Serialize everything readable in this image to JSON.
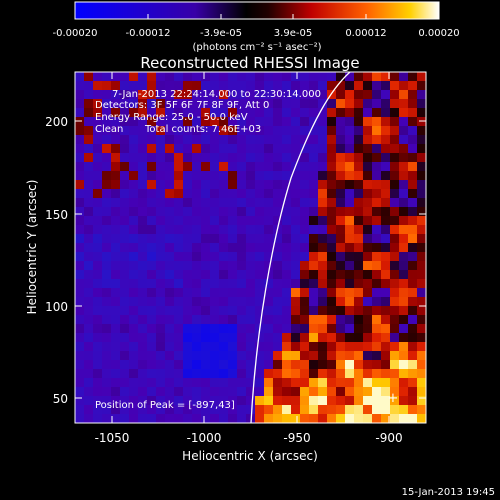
{
  "colorbar": {
    "ticks": [
      "-0.00020",
      "-0.00012",
      "-3.9e-05",
      "3.9e-05",
      "0.00012",
      "0.00020"
    ],
    "units": "(photons cm⁻² s⁻¹ asec⁻²)"
  },
  "plot": {
    "title": "Reconstructed RHESSI Image",
    "info": {
      "time_range": "7-Jan-2013 22:24:14.000 to 22:30:14.000",
      "detectors": "Detectors: 3F 5F 6F 7F 8F 9F, Att 0",
      "energy": "Energy Range: 25.0 - 50.0 keV",
      "method": "Clean",
      "counts": "Total counts: 7.46E+03"
    },
    "peak_label": "Position of Peak = [-897,43]",
    "xlabel": "Heliocentric X (arcsec)",
    "ylabel": "Heliocentric Y (arcsec)",
    "xticks": [
      "-1050",
      "-1000",
      "-950",
      "-900"
    ],
    "yticks": [
      "50",
      "100",
      "150",
      "200"
    ],
    "xlim": [
      -1070,
      -880
    ],
    "ylim": [
      38,
      226
    ]
  },
  "footer": {
    "timestamp": "15-Jan-2013 19:45"
  }
}
